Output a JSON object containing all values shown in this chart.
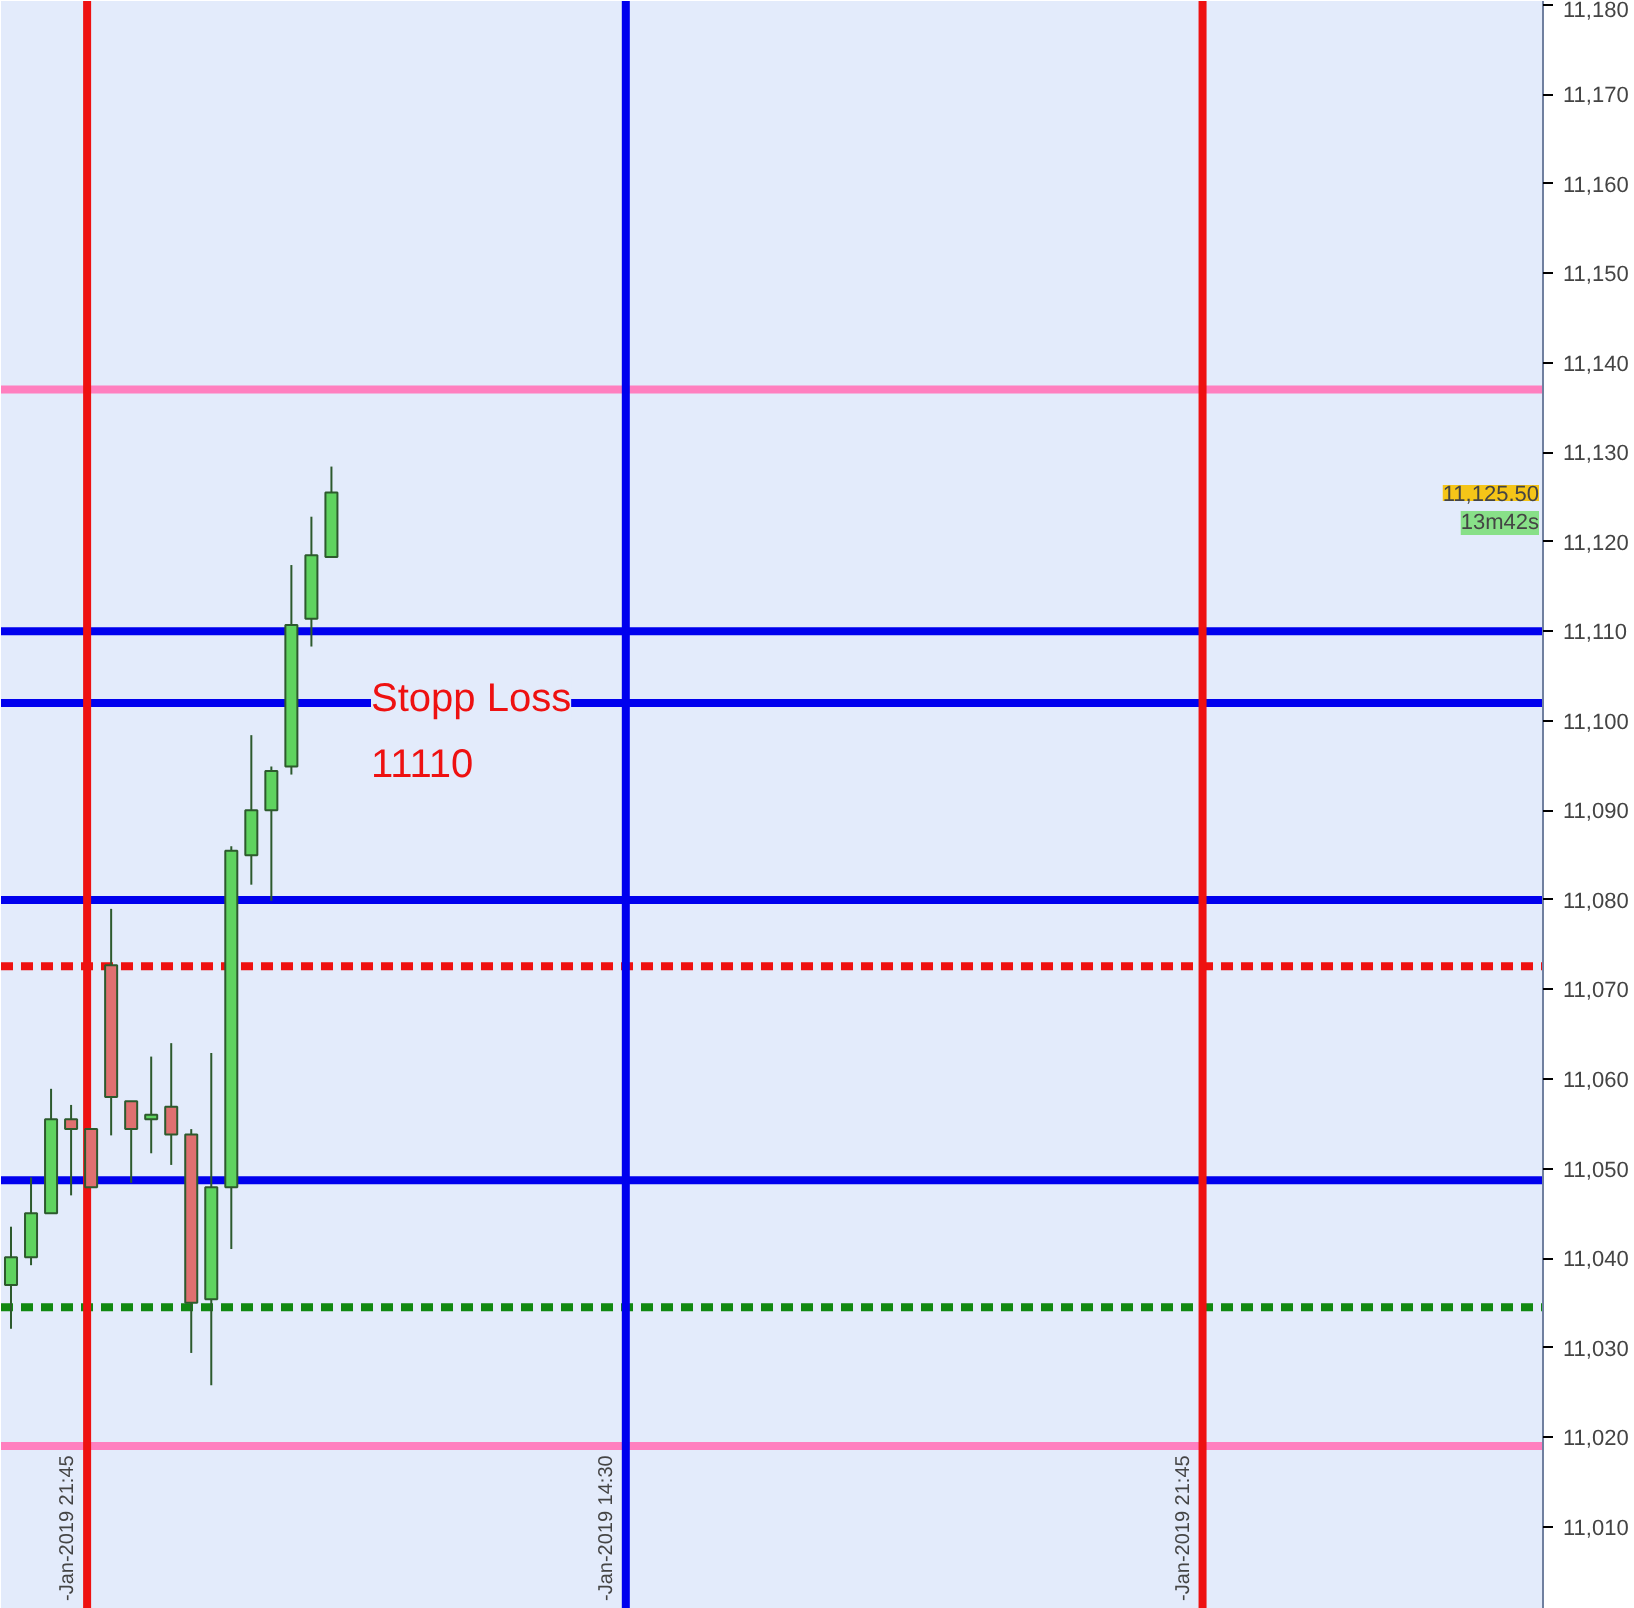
{
  "chart_data": {
    "type": "candlestick",
    "categories": [
      null,
      null,
      null,
      null,
      null,
      null,
      null,
      null,
      null,
      null,
      null,
      null,
      null,
      null,
      null,
      null,
      null,
      null,
      null,
      null,
      null,
      null,
      null,
      null,
      null,
      null,
      null,
      null,
      null,
      null,
      null,
      null,
      null,
      null,
      null,
      null,
      null,
      null,
      null,
      null,
      null,
      null,
      null,
      null,
      null,
      null,
      null,
      null,
      null,
      null,
      null,
      null,
      null,
      null,
      null,
      null,
      null,
      null,
      null,
      null,
      null,
      null,
      null,
      null,
      null,
      null,
      null,
      null,
      null,
      null,
      null,
      null,
      null,
      null,
      null,
      null,
      null
    ],
    "ohlc": [
      [
        11037.0,
        11043.5,
        11032.1,
        11040.1
      ],
      [
        11040.1,
        11049.0,
        11039.2,
        11045.0
      ],
      [
        11045.0,
        11058.9,
        11045.0,
        11055.5
      ],
      [
        11055.5,
        11057.1,
        11047.0,
        11054.4
      ],
      [
        11054.4,
        11054.4,
        11047.9,
        11047.9
      ],
      [
        11072.7,
        11079.0,
        11053.7,
        11058.0
      ],
      [
        11057.5,
        11057.5,
        11048.4,
        11054.4
      ],
      [
        11055.5,
        11062.5,
        11051.7,
        11056.0
      ],
      [
        11056.9,
        11064.0,
        11050.4,
        11053.8
      ],
      [
        11053.8,
        11054.4,
        11029.4,
        11035.0
      ],
      [
        11035.4,
        11062.9,
        11025.8,
        11047.9
      ],
      [
        11047.9,
        11086.0,
        11041.0,
        11085.5
      ],
      [
        11085.0,
        11098.4,
        11081.7,
        11090.0
      ],
      [
        11090.0,
        11094.9,
        11079.9,
        11094.4
      ],
      [
        11094.9,
        11117.4,
        11094.0,
        11110.7
      ],
      [
        11111.4,
        11122.8,
        11108.3,
        11118.5
      ],
      [
        11118.3,
        11128.4,
        11118.3,
        11125.5
      ],
      null,
      null,
      null,
      null,
      null,
      null,
      null,
      null,
      null,
      null,
      null,
      null,
      null,
      null,
      null,
      null,
      null,
      null,
      null,
      null,
      null,
      null,
      null,
      null,
      null,
      null,
      null,
      null,
      null,
      null,
      null,
      null,
      null,
      null,
      null,
      null,
      null,
      null,
      null,
      null,
      null,
      null,
      null,
      null,
      null,
      null,
      null,
      null,
      null,
      null,
      null,
      null,
      null,
      null,
      null,
      null,
      null,
      null,
      null,
      null
    ],
    "colors": [
      "#5fd35f",
      "#5fd35f",
      "#5fd35f",
      "#e07070",
      "#e07070",
      "#e07070",
      "#e07070",
      "#5fd35f",
      "#e07070",
      "#e07070",
      "#5fd35f",
      "#5fd35f",
      "#5fd35f",
      "#5fd35f",
      "#5fd35f",
      "#5fd35f",
      "#5fd35f",
      null,
      null,
      null,
      null,
      null,
      null,
      null,
      null,
      null,
      null,
      null,
      null,
      null,
      null,
      null,
      null,
      null,
      null,
      null,
      null,
      null,
      null,
      null,
      null,
      null,
      null,
      null,
      null,
      null,
      null,
      null,
      null,
      null,
      null,
      null,
      null,
      null,
      null,
      null,
      null,
      null,
      null,
      null,
      null,
      null,
      null,
      null,
      null,
      null,
      null,
      null,
      null,
      null,
      null,
      null,
      null,
      null,
      null,
      null,
      null
    ],
    "ref_lines": [
      {
        "axis": "y",
        "value": 11137,
        "color": "#ff7fbf",
        "line_style": "solid"
      },
      {
        "axis": "y",
        "value": 11102,
        "color": "#0000ee",
        "line_style": "solid"
      },
      {
        "axis": "y",
        "value": 11072.6,
        "color": "#ee1111",
        "line_style": "dashed"
      },
      {
        "axis": "y",
        "value": 11034.5,
        "color": "#118811",
        "line_style": "dashed"
      },
      {
        "axis": "y",
        "value": 11048.7,
        "color": "#0000ee",
        "line_style": "solid"
      },
      {
        "axis": "y",
        "value": 11080,
        "color": "#0000ee",
        "line_style": "solid"
      },
      {
        "axis": "y",
        "value": 11110,
        "color": "#0000ee",
        "line_style": "solid"
      },
      {
        "axis": "y",
        "value": 11019,
        "color": "#ff7fbf",
        "line_style": "solid"
      }
    ],
    "annotations": [
      "-Jan-2019 21:45",
      "-Jan-2019 14:30",
      "-Jan-2019 21:45",
      "Stopp Loss\n11110",
      "11,125.50",
      "13m42s"
    ],
    "ylim": [
      11000.8,
      11180.4
    ],
    "yticks": [
      {
        "value": 11010,
        "label": "11,010"
      },
      {
        "value": 11020,
        "label": "11,020"
      },
      {
        "value": 11030,
        "label": "11,030"
      },
      {
        "value": 11040,
        "label": "11,040"
      },
      {
        "value": 11050,
        "label": "11,050"
      },
      {
        "value": 11060,
        "label": "11,060"
      },
      {
        "value": 11070,
        "label": "11,070"
      },
      {
        "value": 11080,
        "label": "11,080"
      },
      {
        "value": 11090,
        "label": "11,090"
      },
      {
        "value": 11100,
        "label": "11,100"
      },
      {
        "value": 11110,
        "label": "11,110"
      },
      {
        "value": 11120,
        "label": "11,120"
      },
      {
        "value": 11130,
        "label": "11,130"
      },
      {
        "value": 11140,
        "label": "11,140"
      },
      {
        "value": 11150,
        "label": "11,150"
      },
      {
        "value": 11160,
        "label": "11,160"
      },
      {
        "value": 11170,
        "label": "11,170"
      },
      {
        "value": 11180,
        "label": "11,180"
      }
    ],
    "tick_labels": "y"
  }
}
